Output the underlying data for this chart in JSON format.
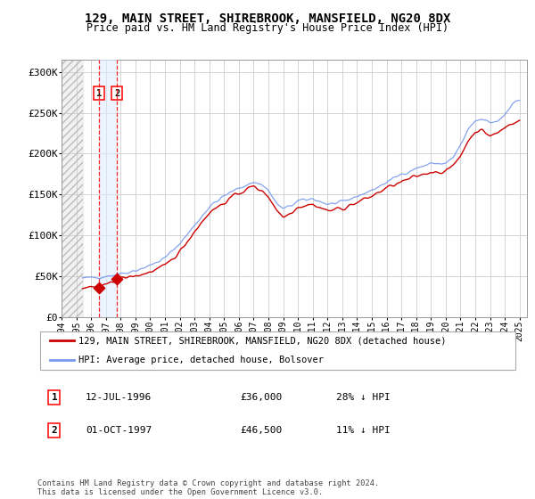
{
  "title_line1": "129, MAIN STREET, SHIREBROOK, MANSFIELD, NG20 8DX",
  "title_line2": "Price paid vs. HM Land Registry's House Price Index (HPI)",
  "ylabel_ticks": [
    "£0",
    "£50K",
    "£100K",
    "£150K",
    "£200K",
    "£250K",
    "£300K"
  ],
  "ytick_vals": [
    0,
    50000,
    100000,
    150000,
    200000,
    250000,
    300000
  ],
  "ylim": [
    0,
    315000
  ],
  "xlim_start": 1994.0,
  "xlim_end": 2025.5,
  "xtick_years": [
    1994,
    1995,
    1996,
    1997,
    1998,
    1999,
    2000,
    2001,
    2002,
    2003,
    2004,
    2005,
    2006,
    2007,
    2008,
    2009,
    2010,
    2011,
    2012,
    2013,
    2014,
    2015,
    2016,
    2017,
    2018,
    2019,
    2020,
    2021,
    2022,
    2023,
    2024,
    2025
  ],
  "hpi_color": "#7799ee",
  "price_color": "#cc0000",
  "marker_color": "#cc0000",
  "sale1_x": 1996.53,
  "sale1_y": 36000,
  "sale1_label": "1",
  "sale1_date": "12-JUL-1996",
  "sale1_price": "£36,000",
  "sale1_note": "28% ↓ HPI",
  "sale2_x": 1997.75,
  "sale2_y": 46500,
  "sale2_label": "2",
  "sale2_date": "01-OCT-1997",
  "sale2_price": "£46,500",
  "sale2_note": "11% ↓ HPI",
  "legend_line1": "129, MAIN STREET, SHIREBROOK, MANSFIELD, NG20 8DX (detached house)",
  "legend_line2": "HPI: Average price, detached house, Bolsover",
  "footer": "Contains HM Land Registry data © Crown copyright and database right 2024.\nThis data is licensed under the Open Government Licence v3.0.",
  "hatch_end_year": 1995.42,
  "hatch_start_year": 1994.0,
  "background_color": "#ffffff",
  "plot_bg_color": "#ffffff",
  "grid_color": "#cccccc"
}
